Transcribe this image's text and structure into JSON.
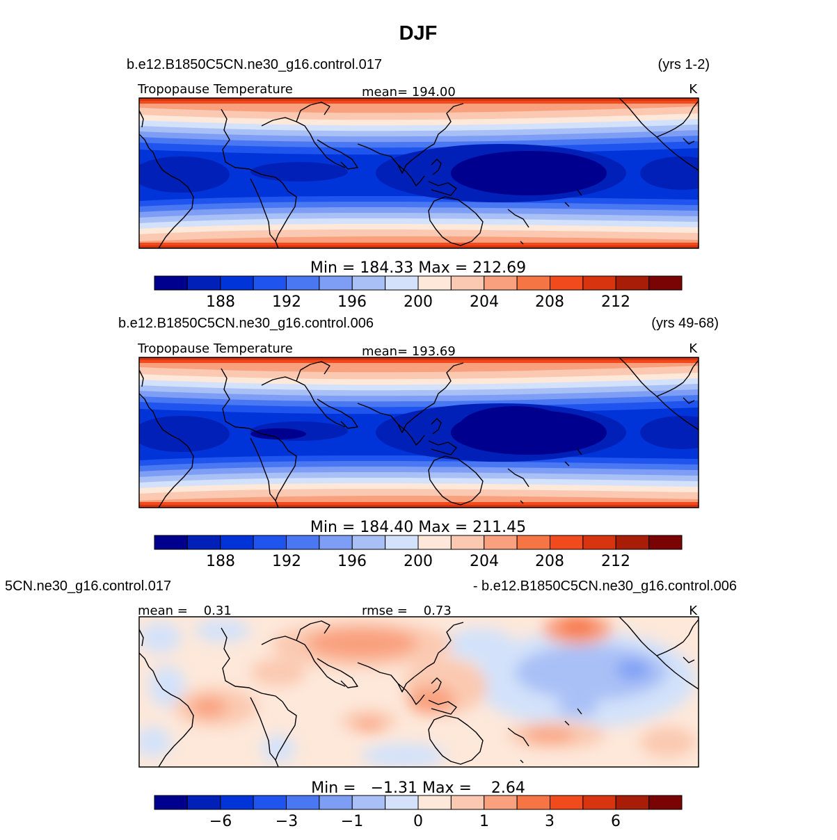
{
  "title": "DJF",
  "colors": {
    "temp_palette": [
      "#00008f",
      "#0020b8",
      "#0034d9",
      "#1f55ee",
      "#4a78f2",
      "#7d9ef4",
      "#a9c0f6",
      "#d3e2fa",
      "#fde8da",
      "#fbc9b1",
      "#f9a07e",
      "#f67544",
      "#f14a1c",
      "#d83410",
      "#a81d08",
      "#7a0404"
    ],
    "diff_palette": [
      "#00008f",
      "#0020b8",
      "#0034d9",
      "#1f55ee",
      "#4a78f2",
      "#7d9ef4",
      "#a9c0f6",
      "#d3e2fa",
      "#fde8da",
      "#fbc9b1",
      "#f9a07e",
      "#f67544",
      "#f14a1c",
      "#d83410",
      "#a81d08",
      "#7a0404"
    ]
  },
  "chart_data": [
    {
      "type": "heatmap",
      "case": "b.e12.B1850C5CN.ne30_g16.control.017",
      "years": "(yrs 1-2)",
      "variable": "Tropopause Temperature",
      "mean_label": "mean= 194.00",
      "units": "K",
      "minmax_label": "Min = 184.33 Max = 212.69",
      "min": 184.33,
      "max": 212.69,
      "mean": 194.0,
      "colorbar_ticks": [
        "188",
        "192",
        "196",
        "200",
        "204",
        "208",
        "212"
      ],
      "levels": [
        186,
        188,
        190,
        192,
        194,
        196,
        198,
        200,
        202,
        204,
        206,
        208,
        210,
        212,
        214
      ]
    },
    {
      "type": "heatmap",
      "case": "b.e12.B1850C5CN.ne30_g16.control.006",
      "years": "(yrs 49-68)",
      "variable": "Tropopause Temperature",
      "mean_label": "mean= 193.69",
      "units": "K",
      "minmax_label": "Min = 184.40 Max = 211.45",
      "min": 184.4,
      "max": 211.45,
      "mean": 193.69,
      "colorbar_ticks": [
        "188",
        "192",
        "196",
        "200",
        "204",
        "208",
        "212"
      ],
      "levels": [
        186,
        188,
        190,
        192,
        194,
        196,
        198,
        200,
        202,
        204,
        206,
        208,
        210,
        212,
        214
      ]
    },
    {
      "type": "heatmap",
      "case_left": "5CN.ne30_g16.control.017",
      "case_right": "- b.e12.B1850C5CN.ne30_g16.control.006",
      "mean_label": "mean =    0.31",
      "rmse_label": "rmse =    0.73",
      "units": "K",
      "minmax_label": "Min =   −1.31 Max =    2.64",
      "min": -1.31,
      "max": 2.64,
      "mean": 0.31,
      "rmse": 0.73,
      "colorbar_ticks": [
        "−6",
        "−3",
        "−1",
        "0",
        "1",
        "3",
        "6"
      ]
    }
  ]
}
